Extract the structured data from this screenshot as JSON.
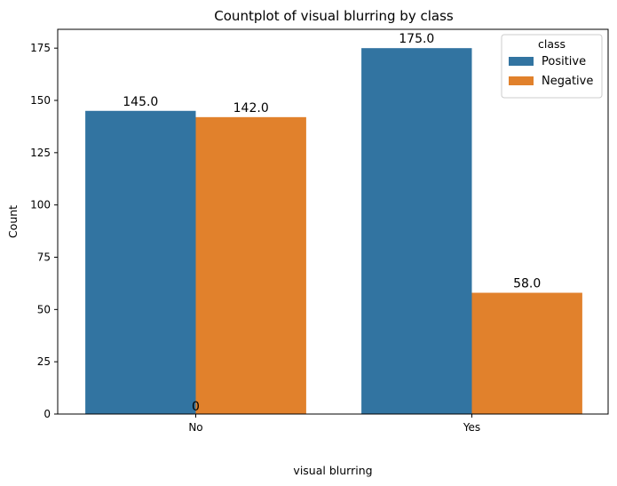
{
  "chart_data": {
    "type": "bar",
    "title": "Countplot of visual blurring by class",
    "xlabel": "visual blurring",
    "ylabel": "Count",
    "categories": [
      "No",
      "Yes"
    ],
    "ylim": [
      0,
      184
    ],
    "yticks": [
      "0",
      "25",
      "50",
      "75",
      "100",
      "125",
      "150",
      "175"
    ],
    "grid": false,
    "legend": {
      "title": "class",
      "placement": "top-right"
    },
    "series": [
      {
        "name": "Positive",
        "color": "#3274a1",
        "values": [
          145,
          175
        ],
        "labels": [
          "145.0",
          "175.0"
        ]
      },
      {
        "name": "Negative",
        "color": "#e1812c",
        "values": [
          142,
          58
        ],
        "labels": [
          "142.0",
          "58.0"
        ]
      }
    ],
    "annotations": [
      {
        "text": "0",
        "category": "No",
        "y": 0
      }
    ]
  }
}
